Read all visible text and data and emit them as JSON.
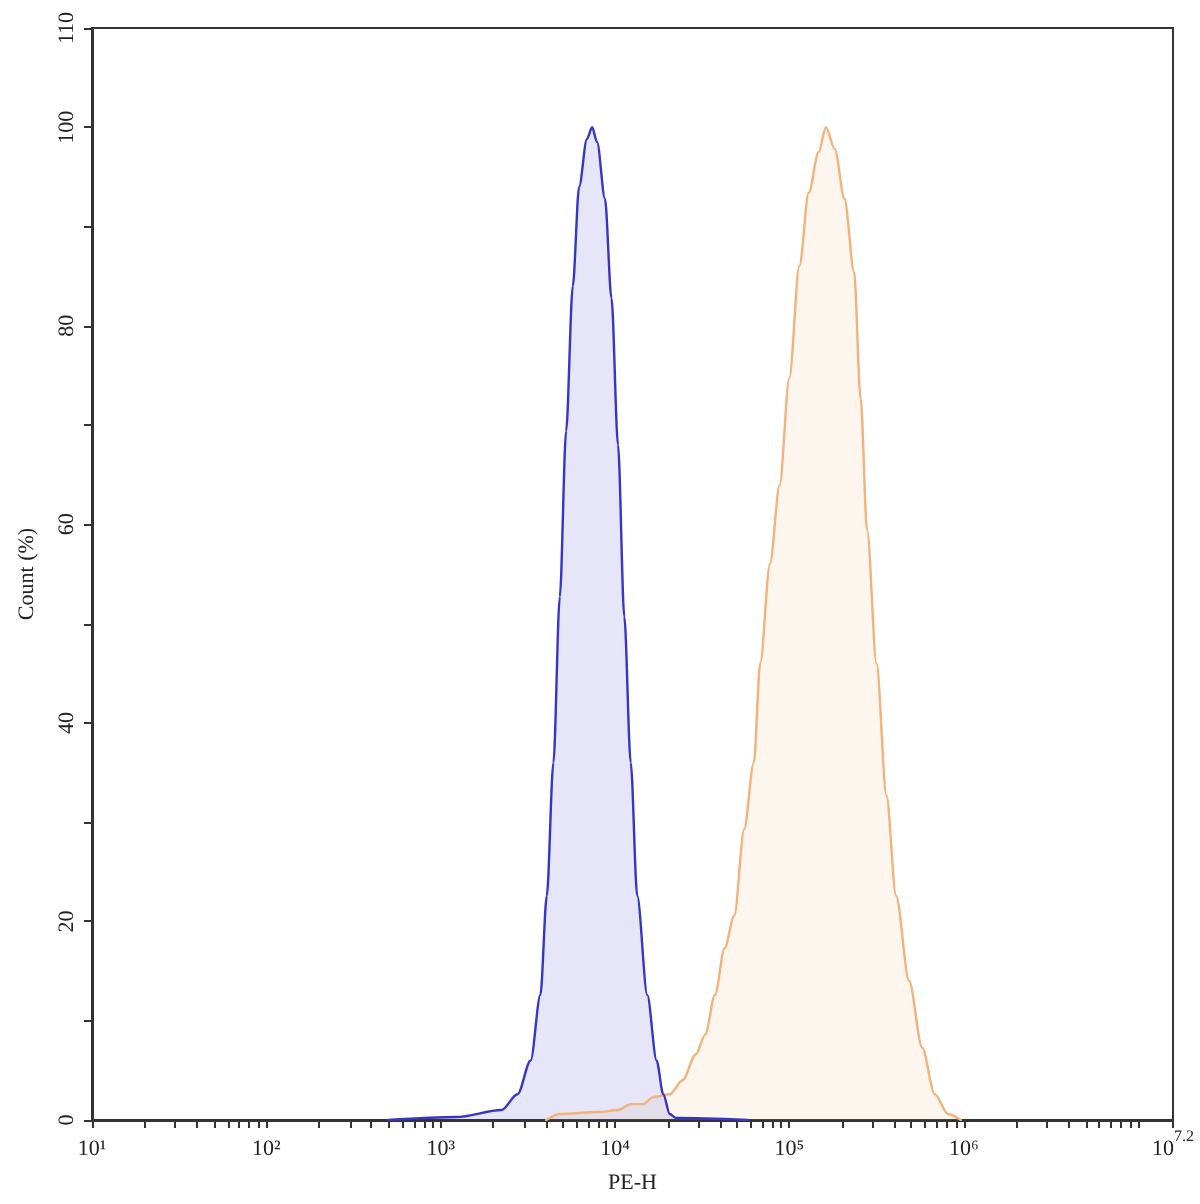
{
  "chart_data": {
    "type": "area",
    "xlabel": "PE-H",
    "ylabel": "Count (%)",
    "log": "x",
    "xlim": [
      10,
      15848932
    ],
    "ylim": [
      0,
      110
    ],
    "xticks": [
      {
        "value": 10,
        "label": "10¹"
      },
      {
        "value": 20,
        "label": null
      },
      {
        "value": 30,
        "label": null
      },
      {
        "value": 40,
        "label": null
      },
      {
        "value": 50,
        "label": null
      },
      {
        "value": 60,
        "label": null
      },
      {
        "value": 70,
        "label": null
      },
      {
        "value": 80,
        "label": null
      },
      {
        "value": 90,
        "label": null
      },
      {
        "value": 100,
        "label": "10²"
      },
      {
        "value": 200,
        "label": null
      },
      {
        "value": 300,
        "label": null
      },
      {
        "value": 400,
        "label": null
      },
      {
        "value": 500,
        "label": null
      },
      {
        "value": 600,
        "label": null
      },
      {
        "value": 700,
        "label": null
      },
      {
        "value": 800,
        "label": null
      },
      {
        "value": 900,
        "label": null
      },
      {
        "value": 1000,
        "label": "10³"
      },
      {
        "value": 2000,
        "label": null
      },
      {
        "value": 3000,
        "label": null
      },
      {
        "value": 4000,
        "label": null
      },
      {
        "value": 5000,
        "label": null
      },
      {
        "value": 6000,
        "label": null
      },
      {
        "value": 7000,
        "label": null
      },
      {
        "value": 8000,
        "label": null
      },
      {
        "value": 9000,
        "label": null
      },
      {
        "value": 10000,
        "label": "10⁴"
      },
      {
        "value": 20000,
        "label": null
      },
      {
        "value": 30000,
        "label": null
      },
      {
        "value": 40000,
        "label": null
      },
      {
        "value": 50000,
        "label": null
      },
      {
        "value": 60000,
        "label": null
      },
      {
        "value": 70000,
        "label": null
      },
      {
        "value": 80000,
        "label": null
      },
      {
        "value": 90000,
        "label": null
      },
      {
        "value": 100000,
        "label": "10⁵"
      },
      {
        "value": 200000,
        "label": null
      },
      {
        "value": 300000,
        "label": null
      },
      {
        "value": 400000,
        "label": null
      },
      {
        "value": 500000,
        "label": null
      },
      {
        "value": 600000,
        "label": null
      },
      {
        "value": 700000,
        "label": null
      },
      {
        "value": 800000,
        "label": null
      },
      {
        "value": 900000,
        "label": null
      },
      {
        "value": 1000000,
        "label": "10⁶"
      },
      {
        "value": 2000000,
        "label": null
      },
      {
        "value": 3000000,
        "label": null
      },
      {
        "value": 4000000,
        "label": null
      },
      {
        "value": 5000000,
        "label": null
      },
      {
        "value": 6000000,
        "label": null
      },
      {
        "value": 7000000,
        "label": null
      },
      {
        "value": 8000000,
        "label": null
      },
      {
        "value": 9000000,
        "label": null
      },
      {
        "value": 10000000,
        "label": null
      },
      {
        "value": 15848932,
        "label": "10$^{7.2}$"
      }
    ],
    "yticks": [
      0,
      {
        "value": 10,
        "label": null
      },
      20,
      {
        "value": 30,
        "label": null
      },
      40,
      {
        "value": 50,
        "label": null
      },
      60,
      {
        "value": 70,
        "label": null
      },
      80,
      {
        "value": 90,
        "label": null
      },
      100,
      110
    ],
    "series": [
      {
        "color": "#f2b27a",
        "x": [
          4030,
          4820,
          8040,
          10400,
          12300,
          14500,
          16500,
          20600,
          24400,
          29000,
          32900,
          37400,
          42500,
          48300,
          55000,
          62500,
          68000,
          77300,
          87900,
          99800,
          114000,
          129000,
          147000,
          162000,
          182000,
          207000,
          235000,
          256000,
          279000,
          316000,
          360000,
          409000,
          486000,
          577000,
          682000,
          811000,
          962000
        ],
        "values": [
          0,
          0.6,
          0.8,
          1,
          1.6,
          1.6,
          2.3,
          2.6,
          4,
          6.6,
          8.6,
          12.6,
          17.3,
          20.6,
          29.3,
          36,
          46,
          56,
          64,
          74.7,
          86,
          93.4,
          97.5,
          100,
          97.8,
          92.8,
          85.4,
          72.7,
          59.4,
          46,
          32.7,
          22.6,
          14,
          7.3,
          2.6,
          0.6,
          0
        ]
      },
      {
        "color": "#3535c8",
        "x": [
          500,
          1230,
          2230,
          2760,
          3280,
          3730,
          4060,
          4430,
          4820,
          5240,
          5720,
          6220,
          6890,
          7390,
          7890,
          8750,
          9540,
          10400,
          11300,
          12300,
          13400,
          15300,
          17300,
          18900,
          20600,
          22400,
          58000
        ],
        "values": [
          0,
          0.3,
          1,
          2.6,
          6,
          12.6,
          22.6,
          36,
          52.7,
          69.4,
          84,
          94,
          98.8,
          100,
          98.5,
          92.8,
          82.8,
          68,
          50.7,
          36,
          22.6,
          12.6,
          6,
          2.6,
          0.6,
          0.2,
          0
        ]
      }
    ]
  }
}
